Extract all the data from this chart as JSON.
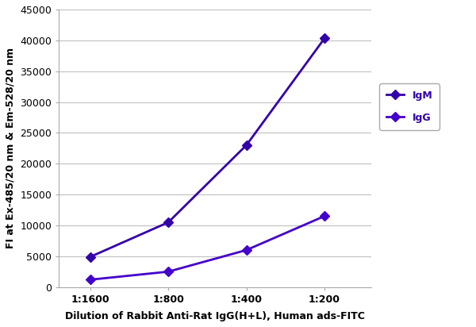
{
  "x_labels": [
    "1:1600",
    "1:800",
    "1:400",
    "1:200"
  ],
  "x_positions": [
    0,
    1,
    2,
    3
  ],
  "IgM_values": [
    4900,
    10500,
    23000,
    40300
  ],
  "IgG_values": [
    1200,
    2500,
    6000,
    11500
  ],
  "IgM_color": "#3300aa",
  "IgG_color": "#4400cc",
  "ylabel": "FI at Ex-485/20 nm & Em-528/20 nm",
  "xlabel": "Dilution of Rabbit Anti-Rat IgG(H+L), Human ads-FITC",
  "ylim": [
    0,
    45000
  ],
  "yticks": [
    0,
    5000,
    10000,
    15000,
    20000,
    25000,
    30000,
    35000,
    40000,
    45000
  ],
  "legend_IgM": "IgM",
  "legend_IgG": "IgG",
  "marker": "D",
  "linewidth": 2.0,
  "markersize": 6,
  "background_color": "#ffffff",
  "grid_color": "#c0c0c0"
}
